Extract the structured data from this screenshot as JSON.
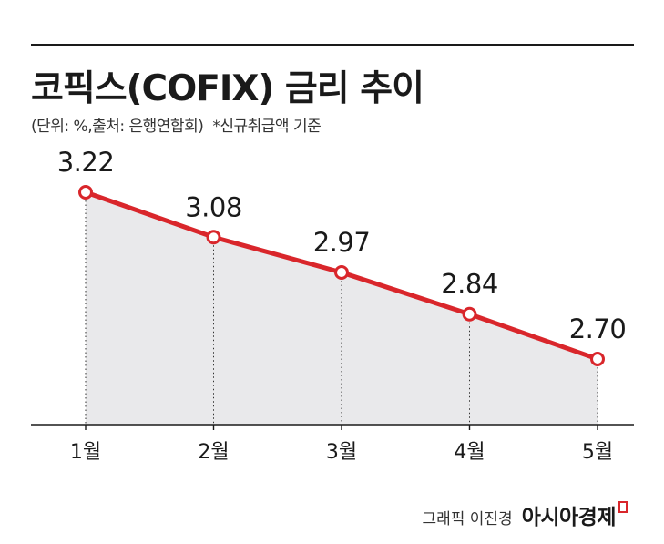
{
  "header": {
    "title": "코픽스(COFIX) 금리 추이",
    "source_note": "(단위: %,출처: 은행연합회)",
    "basis_note": "*신규취급액 기준"
  },
  "credit": {
    "byline": "그래픽 이진경",
    "brand": "아시아경제"
  },
  "colors": {
    "line": "#d9262b",
    "area": "#e9e9eb",
    "axis": "#1a1a1a",
    "marker_fill": "#ffffff"
  },
  "chart_data": {
    "type": "line",
    "categories": [
      "1월",
      "2월",
      "3월",
      "4월",
      "5월"
    ],
    "series": [
      {
        "values": [
          3.22,
          3.08,
          2.97,
          2.84,
          2.7
        ]
      }
    ],
    "data_labels": [
      "3.22",
      "3.08",
      "2.97",
      "2.84",
      "2.70"
    ],
    "area_fill": true,
    "drop_lines": "dotted",
    "grid": false,
    "legend": "none"
  }
}
